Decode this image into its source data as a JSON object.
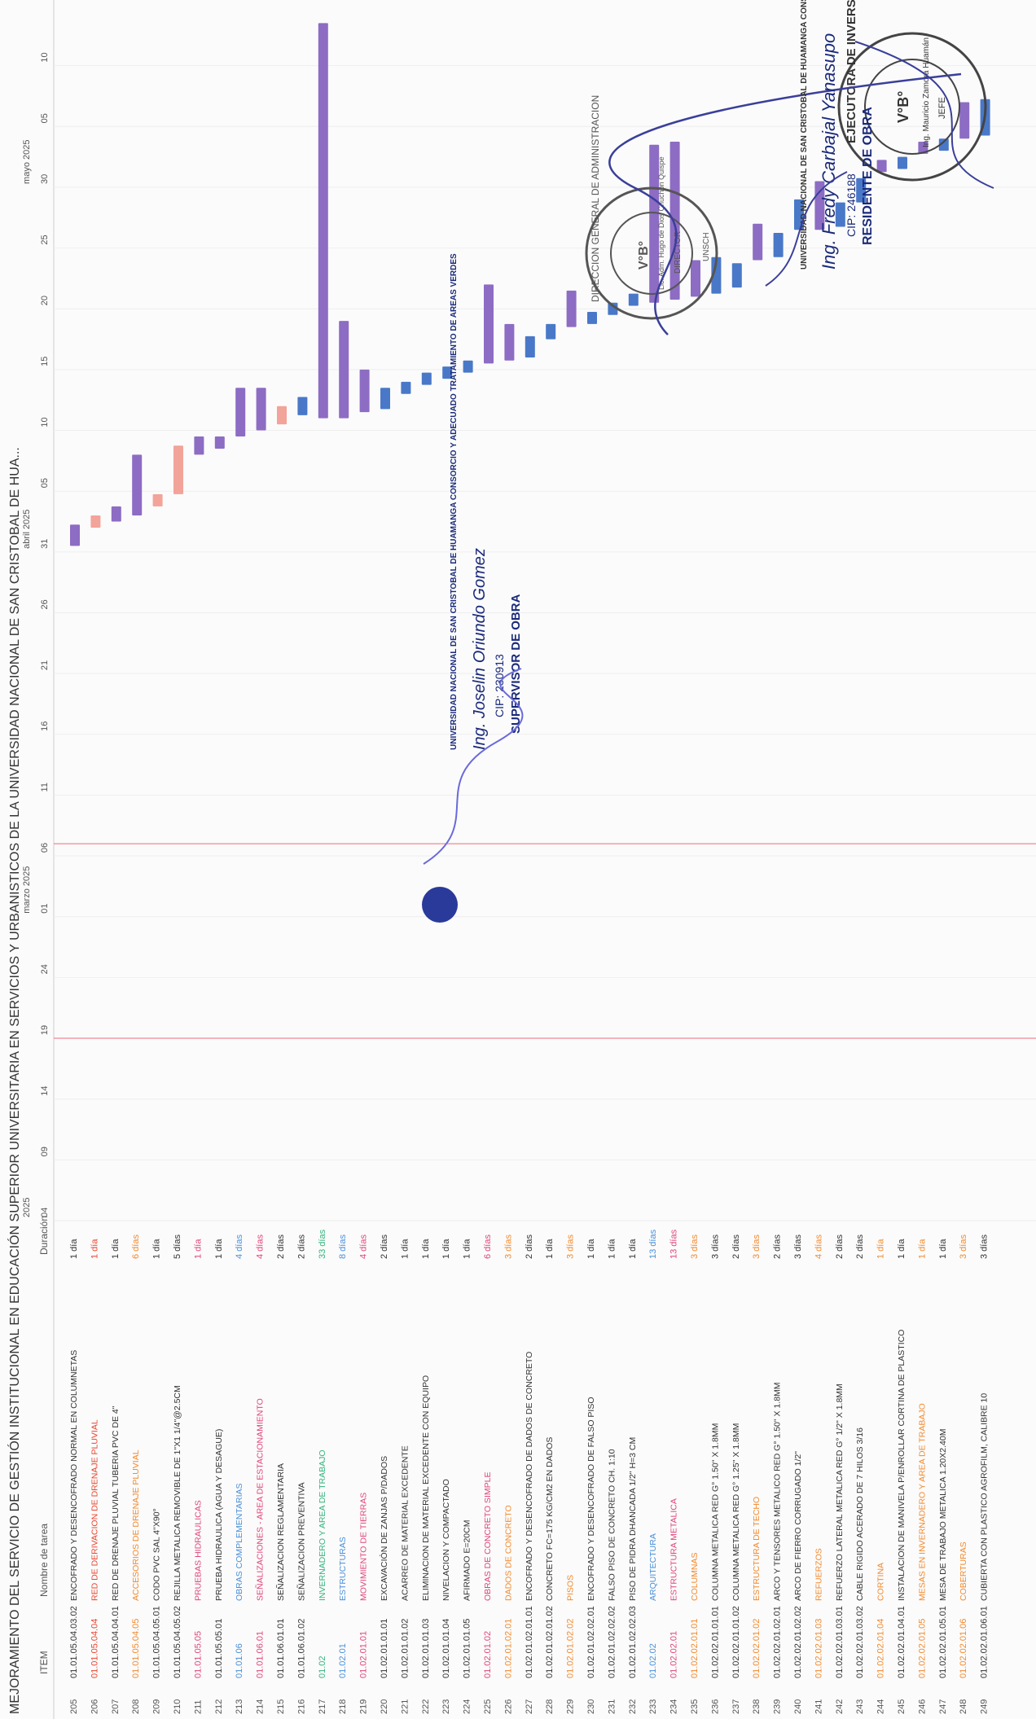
{
  "page_header": "MEJORAMIENTO DEL SERVICIO DE GESTIÓN INSTITUCIONAL EN EDUCACIÓN SUPERIOR UNIVERSITARIA EN SERVICIOS Y URBANISTICOS DE LA UNIVERSIDAD NACIONAL DE SAN CRISTOBAL DE HUA...",
  "columns": {
    "item": "ITEM",
    "name": "Nombre de tarea",
    "duration": "Duración"
  },
  "timeline": {
    "months": [
      "2025",
      "marzo 2025",
      "abril 2025",
      "mayo 2025"
    ],
    "ticks": [
      "04",
      "09",
      "14",
      "19",
      "24",
      "01",
      "06",
      "11",
      "16",
      "21",
      "26",
      "31",
      "05",
      "10",
      "15",
      "20",
      "25",
      "30",
      "05",
      "10"
    ]
  },
  "rows": [
    {
      "num": "205",
      "code": "01.01.05.04.03.02",
      "name": "ENCOFRADO Y DESENCOFRADO NORMAL EN COLUMNETAS",
      "dur": "1 día",
      "color": "black"
    },
    {
      "num": "206",
      "code": "01.01.05.04.04",
      "name": "RED DE DERIVACION DE DRENAJE PLUVIAL",
      "dur": "1 día",
      "color": "red"
    },
    {
      "num": "207",
      "code": "01.01.05.04.04.01",
      "name": "RED DE DRENAJE PLUVIAL TUBERIA PVC DE 4\"",
      "dur": "1 día",
      "color": "black"
    },
    {
      "num": "208",
      "code": "01.01.05.04.05",
      "name": "ACCESORIOS DE DRENAJE PLUVIAL",
      "dur": "6 días",
      "color": "orange"
    },
    {
      "num": "209",
      "code": "01.01.05.04.05.01",
      "name": "CODO PVC SAL 4\"X90°",
      "dur": "1 día",
      "color": "black"
    },
    {
      "num": "210",
      "code": "01.01.05.04.05.02",
      "name": "REJILLA METALICA REMOVIBLE DE 1\"X1 1/4\"@2.5CM",
      "dur": "5 días",
      "color": "black"
    },
    {
      "num": "211",
      "code": "01.01.05.05",
      "name": "PRUEBAS HIDRAULICAS",
      "dur": "1 día",
      "color": "pink"
    },
    {
      "num": "212",
      "code": "01.01.05.05.01",
      "name": "PRUEBA HIDRAULICA (AGUA Y DESAGUE)",
      "dur": "1 día",
      "color": "black"
    },
    {
      "num": "213",
      "code": "01.01.06",
      "name": "OBRAS COMPLEMENTARIAS",
      "dur": "4 días",
      "color": "blue"
    },
    {
      "num": "214",
      "code": "01.01.06.01",
      "name": "SEÑALIZACIONES - AREA DE ESTACIONAMIENTO",
      "dur": "4 días",
      "color": "pink"
    },
    {
      "num": "215",
      "code": "01.01.06.01.01",
      "name": "SEÑALIZACION REGLAMENTARIA",
      "dur": "2 días",
      "color": "black"
    },
    {
      "num": "216",
      "code": "01.01.06.01.02",
      "name": "SEÑALIZACION PREVENTIVA",
      "dur": "2 días",
      "color": "black"
    },
    {
      "num": "217",
      "code": "01.02",
      "name": "INVERNADERO Y AREA DE TRABAJO",
      "dur": "33 días",
      "color": "green"
    },
    {
      "num": "218",
      "code": "01.02.01",
      "name": "ESTRUCTURAS",
      "dur": "8 días",
      "color": "blue"
    },
    {
      "num": "219",
      "code": "01.02.01.01",
      "name": "MOVIMIENTO DE TIERRAS",
      "dur": "4 días",
      "color": "pink"
    },
    {
      "num": "220",
      "code": "01.02.01.01.01",
      "name": "EXCAVACIÓN DE ZANJAS P/DADOS",
      "dur": "2 días",
      "color": "black"
    },
    {
      "num": "221",
      "code": "01.02.01.01.02",
      "name": "ACARREO DE MATERIAL EXCEDENTE",
      "dur": "1 día",
      "color": "black"
    },
    {
      "num": "222",
      "code": "01.02.01.01.03",
      "name": "ELIMINACION DE MATERIAL EXCEDENTE CON EQUIPO",
      "dur": "1 día",
      "color": "black"
    },
    {
      "num": "223",
      "code": "01.02.01.01.04",
      "name": "NIVELACION Y COMPACTADO",
      "dur": "1 día",
      "color": "black"
    },
    {
      "num": "224",
      "code": "01.02.01.01.05",
      "name": "AFIRMADO E=20CM",
      "dur": "1 día",
      "color": "black"
    },
    {
      "num": "225",
      "code": "01.02.01.02",
      "name": "OBRAS DE CONCRETO SIMPLE",
      "dur": "6 días",
      "color": "pink"
    },
    {
      "num": "226",
      "code": "01.02.01.02.01",
      "name": "DADOS DE CONCRETO",
      "dur": "3 días",
      "color": "orange"
    },
    {
      "num": "227",
      "code": "01.02.01.02.01.01",
      "name": "ENCOFRADO Y DESENCOFRADO DE DADOS DE CONCRETO",
      "dur": "2 días",
      "color": "black"
    },
    {
      "num": "228",
      "code": "01.02.01.02.01.02",
      "name": "CONCRETO FC=175 KG/CM2 EN DADOS",
      "dur": "1 día",
      "color": "black"
    },
    {
      "num": "229",
      "code": "01.02.01.02.02",
      "name": "PISOS",
      "dur": "3 días",
      "color": "orange"
    },
    {
      "num": "230",
      "code": "01.02.01.02.02.01",
      "name": "ENCOFRADO Y DESENCOFRADO DE FALSO PISO",
      "dur": "1 día",
      "color": "black"
    },
    {
      "num": "231",
      "code": "01.02.01.02.02.02",
      "name": "FALSO PISO DE CONCRETO CH. 1:10",
      "dur": "1 día",
      "color": "black"
    },
    {
      "num": "232",
      "code": "01.02.01.02.02.03",
      "name": "PISO DE PIDRA DHANCADA 1/2\" H=3 CM",
      "dur": "1 día",
      "color": "black"
    },
    {
      "num": "233",
      "code": "01.02.02",
      "name": "ARQUITECTURA",
      "dur": "13 días",
      "color": "blue"
    },
    {
      "num": "234",
      "code": "01.02.02.01",
      "name": "ESTRUCTURA METALICA",
      "dur": "13 días",
      "color": "pink"
    },
    {
      "num": "235",
      "code": "01.02.02.01.01",
      "name": "COLUMNAS",
      "dur": "3 días",
      "color": "orange"
    },
    {
      "num": "236",
      "code": "01.02.02.01.01.01",
      "name": "COLUMNA METALICA RED G° 1.50\" X 1.8MM",
      "dur": "3 días",
      "color": "black"
    },
    {
      "num": "237",
      "code": "01.02.02.01.01.02",
      "name": "COLUMNA METALICA RED G° 1.25\" X 1.8MM",
      "dur": "2 días",
      "color": "black"
    },
    {
      "num": "238",
      "code": "01.02.02.01.02",
      "name": "ESTRUCTURA DE TECHO",
      "dur": "3 días",
      "color": "orange"
    },
    {
      "num": "239",
      "code": "01.02.02.01.02.01",
      "name": "ARCO Y TENSORES METALICO RED G° 1.50\" X 1.8MM",
      "dur": "2 días",
      "color": "black"
    },
    {
      "num": "240",
      "code": "01.02.02.01.02.02",
      "name": "ARCO DE FIERRO CORRUGADO 1/2\"",
      "dur": "3 días",
      "color": "black"
    },
    {
      "num": "241",
      "code": "01.02.02.01.03",
      "name": "REFUERZOS",
      "dur": "4 días",
      "color": "orange"
    },
    {
      "num": "242",
      "code": "01.02.02.01.03.01",
      "name": "REFUERZO LATERAL METALICA RED G° 1/2\" X 1.8MM",
      "dur": "2 días",
      "color": "black"
    },
    {
      "num": "243",
      "code": "01.02.02.01.03.02",
      "name": "CABLE RIGIDO ACERADO DE 7 HILOS 3/16",
      "dur": "2 días",
      "color": "black"
    },
    {
      "num": "244",
      "code": "01.02.02.01.04",
      "name": "CORTINA",
      "dur": "1 día",
      "color": "orange"
    },
    {
      "num": "245",
      "code": "01.02.02.01.04.01",
      "name": "INSTALACION DE MANIVELA P/ENROLLAR CORTINA DE PLASTICO",
      "dur": "1 día",
      "color": "black"
    },
    {
      "num": "246",
      "code": "01.02.02.01.05",
      "name": "MESAS EN INVERNADERO Y AREA DE TRABAJO",
      "dur": "1 día",
      "color": "orange"
    },
    {
      "num": "247",
      "code": "01.02.02.01.05.01",
      "name": "MESA DE TRABAJO METALICA 1.20X2.40M",
      "dur": "1 día",
      "color": "black"
    },
    {
      "num": "248",
      "code": "01.02.02.01.06",
      "name": "COBERTURAS",
      "dur": "3 días",
      "color": "orange"
    },
    {
      "num": "249",
      "code": "01.02.02.01.06.01",
      "name": "CUBIERTA CON PLASTICO AGROFILM, CALIBRE 10",
      "dur": "3 días",
      "color": "black"
    }
  ],
  "stamps": {
    "top_right_outer": "EJECUTORA DE INVERSIONES",
    "top_right_vb": "V°B°",
    "top_right_person": "Ing. Mauricio Zamora Huamán",
    "top_right_role": "JEFE",
    "middle_outer": "DIRECCION GENERAL DE ADMINISTRACION",
    "middle_vb": "V°B°",
    "middle_person": "Lic. Adm. Hugo de Dios Chuchón Quispe",
    "middle_role": "DIRECTOR",
    "middle_org": "UNSCH"
  },
  "seals": {
    "resident_org": "UNIVERSIDAD NACIONAL DE SAN CRISTOBAL DE HUAMANGA CONSORCIO Y ADECUADO TRATAMIENTO DE AREAS VERDES",
    "resident_name": "Ing. Fredy Carbajal Yanasupo",
    "resident_cip": "CIP: 246188",
    "resident_role": "RESIDENTE DE OBRA",
    "supervisor_org": "UNIVERSIDAD NACIONAL DE SAN CRISTOBAL DE HUAMANGA CONSORCIO Y ADECUADO TRATAMIENTO DE AREAS VERDES",
    "supervisor_name": "Ing. Joselin Oriundo Gomez",
    "supervisor_cip": "CIP: 230913",
    "supervisor_role": "SUPERVISOR DE OBRA"
  },
  "colors": {
    "red": "#e8452f",
    "blue": "#4a90d9",
    "pink": "#e0457b",
    "green": "#36b37e",
    "orange": "#f28a2e",
    "bar_blue": "#4a78c8",
    "bar_purple": "#8d6cc4",
    "bar_salmon": "#f2a39a"
  }
}
